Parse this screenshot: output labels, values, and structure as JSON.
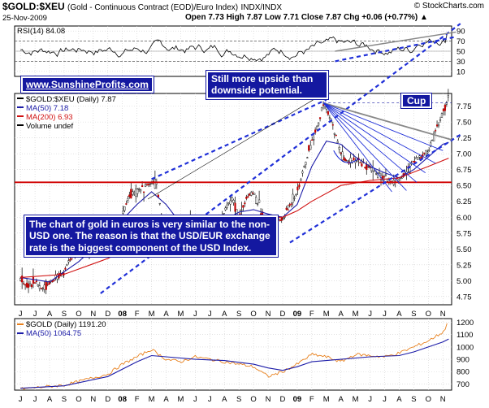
{
  "header": {
    "symbol": "$GOLD:$XEU",
    "description": "(Gold - Continuous Contract (EOD)/Euro Index)",
    "exchange": "INDX/INDX",
    "site": "© StockCharts.com",
    "date": "25-Nov-2009",
    "ohlc": "Open 7.73  High 7.87  Low 7.71  Close 7.87  Chg +0.06 (+0.77%) ▲"
  },
  "annotations": {
    "website": "www.SunshineProfits.com",
    "upside": "Still more upside than downside potential.",
    "cup": "Cup",
    "description": "The chart of gold in euros is very similar to the non-USD one. The reason is that the USD/EUR exchange rate is the biggest component of the USD Index."
  },
  "colors": {
    "price": "#c00000",
    "ma50": "#1c1ca8",
    "ma200": "#d01010",
    "gold": "#e8801c",
    "trend": "#2030d8",
    "support": "#d00000"
  },
  "chart_data": [
    {
      "type": "line",
      "panel": "RSI(14) 84.08",
      "legend": [
        "RSI(14) 84.08"
      ],
      "y_ticks": [
        10,
        30,
        50,
        70,
        90
      ],
      "ylim": [
        0,
        100
      ],
      "reference_lines": [
        30,
        70
      ],
      "series": [
        {
          "name": "RSI(14)",
          "last": 84.08
        }
      ]
    },
    {
      "type": "candlestick",
      "panel": "$GOLD:$XEU (Daily) 7.87",
      "legend": [
        "$GOLD:$XEU (Daily) 7.87",
        "MA(50) 7.18",
        "MA(200) 6.93",
        "Volume undef"
      ],
      "x_tick_labels": [
        "J",
        "J",
        "A",
        "S",
        "O",
        "N",
        "D",
        "08",
        "F",
        "M",
        "A",
        "M",
        "J",
        "J",
        "A",
        "S",
        "O",
        "N",
        "D",
        "09",
        "F",
        "M",
        "A",
        "M",
        "J",
        "J",
        "A",
        "S",
        "O",
        "N"
      ],
      "y_ticks": [
        4.75,
        5.0,
        5.25,
        5.5,
        5.75,
        6.0,
        6.25,
        6.5,
        6.75,
        7.0,
        7.25,
        7.5,
        7.75
      ],
      "ylim": [
        4.62,
        7.95
      ],
      "horizontal_support": 6.55,
      "series": [
        {
          "name": "$GOLD:$XEU (Daily)",
          "last": 7.87,
          "points": [
            [
              0,
              5.02
            ],
            [
              0.5,
              4.92
            ],
            [
              1,
              4.98
            ],
            [
              1.5,
              4.87
            ],
            [
              2,
              4.98
            ],
            [
              2.5,
              5.05
            ],
            [
              3,
              5.15
            ],
            [
              3.5,
              5.35
            ],
            [
              4,
              5.45
            ],
            [
              4.5,
              5.55
            ],
            [
              5,
              5.7
            ],
            [
              5.5,
              5.75
            ],
            [
              6,
              5.78
            ],
            [
              6.5,
              5.92
            ],
            [
              7,
              6.05
            ],
            [
              7.5,
              6.35
            ],
            [
              8,
              6.4
            ],
            [
              8.5,
              6.48
            ],
            [
              9,
              6.55
            ],
            [
              9.3,
              6.55
            ],
            [
              9.7,
              6.0
            ],
            [
              10,
              5.85
            ],
            [
              10.5,
              5.6
            ],
            [
              11,
              5.7
            ],
            [
              11.5,
              5.9
            ],
            [
              12,
              5.9
            ],
            [
              12.5,
              5.85
            ],
            [
              13,
              5.75
            ],
            [
              13.5,
              5.8
            ],
            [
              14,
              6.1
            ],
            [
              14.5,
              6.3
            ],
            [
              15,
              6.0
            ],
            [
              15.5,
              6.3
            ],
            [
              16,
              6.4
            ],
            [
              16.5,
              6.1
            ],
            [
              17,
              5.92
            ],
            [
              17.5,
              5.95
            ],
            [
              18,
              5.96
            ],
            [
              18.5,
              6.2
            ],
            [
              19,
              6.4
            ],
            [
              19.5,
              6.8
            ],
            [
              20,
              7.2
            ],
            [
              20.5,
              7.5
            ],
            [
              20.8,
              7.82
            ],
            [
              21,
              7.7
            ],
            [
              21.5,
              7.4
            ],
            [
              22,
              7.0
            ],
            [
              22.5,
              6.85
            ],
            [
              23,
              6.9
            ],
            [
              23.5,
              6.8
            ],
            [
              24,
              6.78
            ],
            [
              24.5,
              6.7
            ],
            [
              25,
              6.6
            ],
            [
              25.5,
              6.55
            ],
            [
              26,
              6.6
            ],
            [
              26.5,
              6.7
            ],
            [
              27,
              6.9
            ],
            [
              27.5,
              6.95
            ],
            [
              28,
              7.05
            ],
            [
              28.5,
              7.35
            ],
            [
              29,
              7.65
            ],
            [
              29.4,
              7.87
            ]
          ]
        },
        {
          "name": "MA(50)",
          "last": 7.18,
          "points": [
            [
              0,
              5.05
            ],
            [
              2,
              4.98
            ],
            [
              4,
              5.3
            ],
            [
              6,
              5.72
            ],
            [
              8,
              6.2
            ],
            [
              9,
              6.4
            ],
            [
              10,
              6.2
            ],
            [
              11,
              5.9
            ],
            [
              12,
              5.85
            ],
            [
              13,
              5.85
            ],
            [
              14,
              5.95
            ],
            [
              15,
              6.08
            ],
            [
              16,
              6.12
            ],
            [
              17,
              6.05
            ],
            [
              18,
              6.0
            ],
            [
              19,
              6.2
            ],
            [
              20,
              6.8
            ],
            [
              21,
              7.2
            ],
            [
              22,
              7.15
            ],
            [
              23,
              6.95
            ],
            [
              24,
              6.8
            ],
            [
              25,
              6.7
            ],
            [
              26,
              6.62
            ],
            [
              27,
              6.75
            ],
            [
              28,
              6.95
            ],
            [
              29,
              7.15
            ],
            [
              29.4,
              7.18
            ]
          ]
        },
        {
          "name": "MA(200)",
          "last": 6.93,
          "points": [
            [
              0,
              5.05
            ],
            [
              3,
              5.1
            ],
            [
              6,
              5.35
            ],
            [
              9,
              5.7
            ],
            [
              12,
              5.9
            ],
            [
              15,
              6.0
            ],
            [
              18,
              6.0
            ],
            [
              19,
              6.1
            ],
            [
              20,
              6.25
            ],
            [
              22,
              6.5
            ],
            [
              24,
              6.58
            ],
            [
              26,
              6.62
            ],
            [
              28,
              6.8
            ],
            [
              29.4,
              6.93
            ]
          ]
        }
      ]
    },
    {
      "type": "line",
      "panel": "$GOLD (Daily) 1191.20",
      "legend": [
        "$GOLD (Daily) 1191.20",
        "MA(50) 1064.75"
      ],
      "x_tick_labels": [
        "J",
        "J",
        "A",
        "S",
        "O",
        "N",
        "D",
        "08",
        "F",
        "M",
        "A",
        "M",
        "J",
        "J",
        "A",
        "S",
        "O",
        "N",
        "D",
        "09",
        "F",
        "M",
        "A",
        "M",
        "J",
        "J",
        "A",
        "S",
        "O",
        "N"
      ],
      "y_ticks": [
        700,
        800,
        900,
        1000,
        1100,
        1200
      ],
      "ylim": [
        650,
        1230
      ],
      "series": [
        {
          "name": "$GOLD (Daily)",
          "last": 1191.2,
          "points": [
            [
              0,
              660
            ],
            [
              3,
              690
            ],
            [
              6,
              780
            ],
            [
              7,
              860
            ],
            [
              8,
              920
            ],
            [
              9,
              980
            ],
            [
              10,
              900
            ],
            [
              11,
              880
            ],
            [
              12,
              920
            ],
            [
              13,
              900
            ],
            [
              14,
              880
            ],
            [
              15,
              860
            ],
            [
              16,
              840
            ],
            [
              17,
              760
            ],
            [
              18,
              800
            ],
            [
              19,
              860
            ],
            [
              20,
              940
            ],
            [
              21,
              920
            ],
            [
              22,
              880
            ],
            [
              23,
              940
            ],
            [
              24,
              930
            ],
            [
              25,
              920
            ],
            [
              26,
              950
            ],
            [
              27,
              1000
            ],
            [
              28,
              1050
            ],
            [
              29,
              1120
            ],
            [
              29.4,
              1191
            ]
          ]
        },
        {
          "name": "MA(50)",
          "last": 1064.75,
          "points": [
            [
              0,
              665
            ],
            [
              3,
              685
            ],
            [
              6,
              760
            ],
            [
              8,
              880
            ],
            [
              9,
              930
            ],
            [
              10,
              920
            ],
            [
              12,
              900
            ],
            [
              14,
              890
            ],
            [
              16,
              860
            ],
            [
              17,
              830
            ],
            [
              18,
              810
            ],
            [
              19,
              840
            ],
            [
              20,
              880
            ],
            [
              22,
              900
            ],
            [
              24,
              920
            ],
            [
              26,
              930
            ],
            [
              27,
              960
            ],
            [
              28,
              1000
            ],
            [
              29,
              1040
            ],
            [
              29.4,
              1064.75
            ]
          ]
        }
      ]
    }
  ]
}
